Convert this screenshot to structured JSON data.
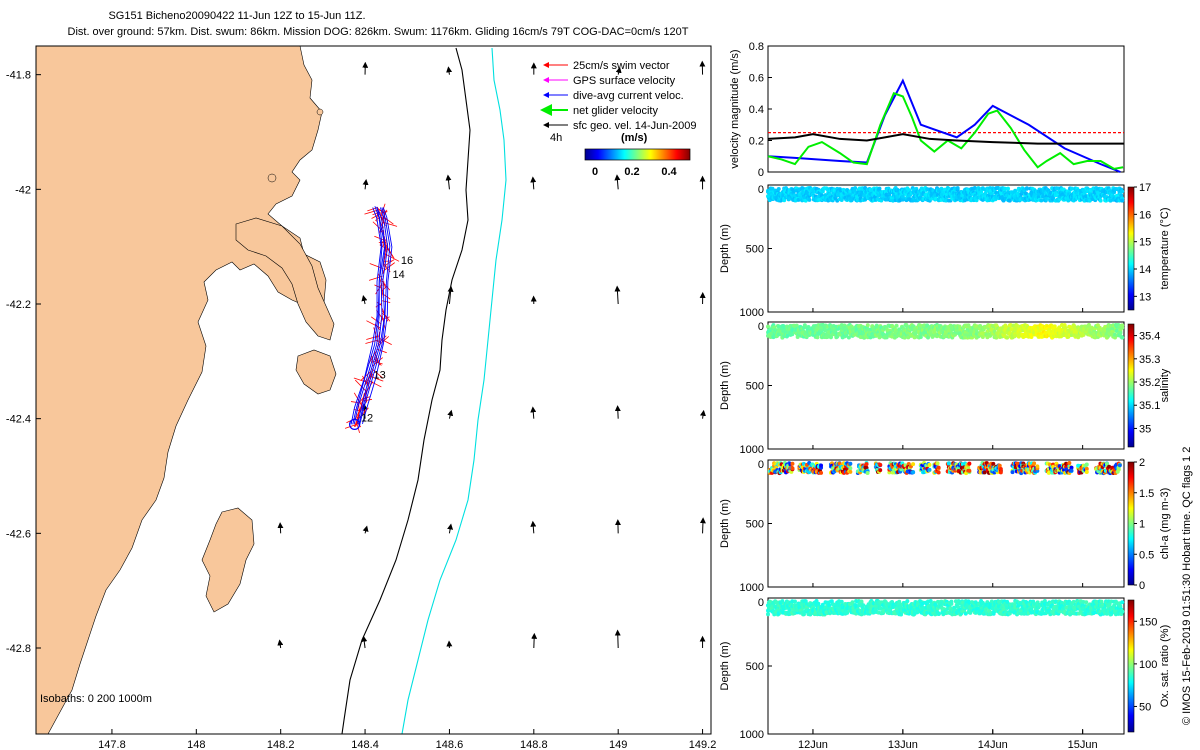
{
  "title": {
    "line1": "SG151 Bicheno20090422 11-Jun 12Z to 15-Jun 11Z.",
    "line2": "Dist. over ground: 57km. Dist. swum: 86km. Mission DOG: 826km. Swum: 1176km. Gliding 16cm/s 79T COG-DAC=0cm/s 120T"
  },
  "copyright": "© IMOS 15-Feb-2019 01:51:30 Hobart time. QC flags 1  2",
  "colors": {
    "land": "#f8c79b",
    "swim": "#ff0000",
    "gps": "#ff00ff",
    "dac": "#0000ff",
    "net": "#00ee00",
    "geo": "#000000",
    "isobath200": "#000000",
    "isobath1000": "#00e0e0",
    "threshold": "#ff0000"
  },
  "chart_data": [
    {
      "type": "map",
      "xlim": [
        147.62,
        149.22
      ],
      "ylim": [
        -42.95,
        -41.75
      ],
      "xticks": [
        "147.8",
        "148",
        "148.2",
        "148.4",
        "148.6",
        "148.8",
        "149",
        "149.2"
      ],
      "xtick_values": [
        147.8,
        148.0,
        148.2,
        148.4,
        148.6,
        148.8,
        149.0,
        149.2
      ],
      "yticks": [
        "-41.8",
        "-42",
        "-42.2",
        "-42.4",
        "-42.6",
        "-42.8"
      ],
      "ytick_values": [
        -41.8,
        -42.0,
        -42.2,
        -42.4,
        -42.6,
        -42.8
      ],
      "legend": {
        "position": "top-right",
        "items": [
          {
            "label": "25cm/s swim vector",
            "color": "#ff0000"
          },
          {
            "label": "GPS surface velocity",
            "color": "#ff00ff"
          },
          {
            "label": "dive-avg current veloc.",
            "color": "#0000ff"
          },
          {
            "label": "net glider velocity",
            "color": "#00ee00"
          },
          {
            "label": "sfc geo. vel. 14-Jun-2009",
            "color": "#000000"
          }
        ],
        "note": "4h",
        "colorbar_label": "(m/s)",
        "colorbar_ticks": [
          "0",
          "0.2",
          "0.4"
        ]
      },
      "isobaths_label": "Isobaths: 0  200  1000m",
      "track": [
        [
          148.38,
          -42.41
        ],
        [
          148.39,
          -42.38
        ],
        [
          148.41,
          -42.33
        ],
        [
          148.43,
          -42.27
        ],
        [
          148.44,
          -42.22
        ],
        [
          148.44,
          -42.16
        ],
        [
          148.45,
          -42.1
        ],
        [
          148.44,
          -42.05
        ],
        [
          148.43,
          -42.03
        ]
      ],
      "day_labels": [
        {
          "text": "12",
          "lon": 148.39,
          "lat": -42.405
        },
        {
          "text": "13",
          "lon": 148.42,
          "lat": -42.33
        },
        {
          "text": "14",
          "lon": 148.465,
          "lat": -42.155
        },
        {
          "text": "16",
          "lon": 148.485,
          "lat": -42.13
        }
      ],
      "geo_grid_lons": [
        148.2,
        148.4,
        148.6,
        148.8,
        149.0,
        149.2
      ],
      "geo_grid_lats": [
        -41.8,
        -42.0,
        -42.2,
        -42.4,
        -42.6,
        -42.8
      ]
    },
    {
      "type": "line",
      "ylabel": "velocity magnitude (m/s)",
      "ylim": [
        0,
        0.8
      ],
      "yticks": [
        "0",
        "0.2",
        "0.4",
        "0.6",
        "0.8"
      ],
      "ytick_values": [
        0,
        0.2,
        0.4,
        0.6,
        0.8
      ],
      "xlim": [
        11.5,
        15.46
      ],
      "threshold": 0.25,
      "series": [
        {
          "color": "#0000ff",
          "x": [
            11.5,
            11.8,
            12.3,
            12.6,
            12.8,
            13.0,
            13.2,
            13.6,
            13.8,
            14.0,
            14.4,
            14.8,
            15.2,
            15.42
          ],
          "y": [
            0.1,
            0.09,
            0.07,
            0.06,
            0.36,
            0.58,
            0.3,
            0.22,
            0.3,
            0.42,
            0.3,
            0.15,
            0.05,
            0.0
          ]
        },
        {
          "color": "#00ee00",
          "x": [
            11.5,
            11.65,
            11.8,
            11.95,
            12.1,
            12.3,
            12.45,
            12.6,
            12.75,
            12.9,
            13.0,
            13.1,
            13.2,
            13.35,
            13.5,
            13.65,
            13.8,
            13.95,
            14.05,
            14.2,
            14.35,
            14.5,
            14.6,
            14.75,
            14.9,
            15.05,
            15.2,
            15.35,
            15.45
          ],
          "y": [
            0.1,
            0.08,
            0.05,
            0.16,
            0.19,
            0.12,
            0.06,
            0.05,
            0.3,
            0.5,
            0.48,
            0.35,
            0.2,
            0.13,
            0.2,
            0.15,
            0.25,
            0.37,
            0.39,
            0.28,
            0.14,
            0.03,
            0.07,
            0.12,
            0.05,
            0.07,
            0.07,
            0.02,
            0.03
          ]
        },
        {
          "color": "#000000",
          "x": [
            11.5,
            11.8,
            12.0,
            12.3,
            12.6,
            12.8,
            13.0,
            13.3,
            13.6,
            14.0,
            14.5,
            15.0,
            15.46
          ],
          "y": [
            0.21,
            0.22,
            0.24,
            0.21,
            0.2,
            0.22,
            0.24,
            0.21,
            0.2,
            0.19,
            0.18,
            0.18,
            0.18
          ]
        }
      ]
    },
    {
      "type": "scatter",
      "ylabel": "Depth (m)",
      "ylim": [
        0,
        1000
      ],
      "yticks": [
        "0",
        "500",
        "1000"
      ],
      "ytick_values": [
        0,
        500,
        1000
      ],
      "clabel": "temperature (°C)",
      "cticks": [
        "13",
        "14",
        "15",
        "16",
        "17"
      ],
      "ctick_values": [
        13,
        14,
        15,
        16,
        17
      ],
      "crange": [
        12.5,
        17
      ],
      "value_along_x": [
        [
          11.5,
          14.0
        ],
        [
          15.46,
          14.0
        ]
      ],
      "depth_range": [
        0,
        100
      ]
    },
    {
      "type": "scatter",
      "ylabel": "Depth (m)",
      "ylim": [
        0,
        1000
      ],
      "yticks": [
        "0",
        "500",
        "1000"
      ],
      "ytick_values": [
        0,
        500,
        1000
      ],
      "clabel": "salinity",
      "cticks": [
        "35",
        "35.1",
        "35.2",
        "35.3",
        "35.4"
      ],
      "ctick_values": [
        35.0,
        35.1,
        35.2,
        35.3,
        35.4
      ],
      "crange": [
        34.92,
        35.45
      ],
      "value_along_x": [
        [
          11.5,
          35.17
        ],
        [
          13.8,
          35.19
        ],
        [
          14.6,
          35.25
        ],
        [
          15.0,
          35.21
        ],
        [
          15.46,
          35.18
        ]
      ],
      "depth_range": [
        0,
        100
      ]
    },
    {
      "type": "scatter",
      "ylabel": "Depth (m)",
      "ylim": [
        0,
        1000
      ],
      "yticks": [
        "0",
        "500",
        "1000"
      ],
      "ytick_values": [
        0,
        500,
        1000
      ],
      "clabel": "chl-a (mg m-3)",
      "cticks": [
        "0",
        "0.5",
        "1",
        "1.5",
        "2"
      ],
      "ctick_values": [
        0,
        0.5,
        1.0,
        1.5,
        2.0
      ],
      "crange": [
        0,
        2
      ],
      "bursts": [
        [
          11.52,
          11.78
        ],
        [
          11.85,
          12.1
        ],
        [
          12.2,
          12.42
        ],
        [
          12.5,
          12.62
        ],
        [
          12.7,
          12.76
        ],
        [
          12.85,
          13.12
        ],
        [
          13.2,
          13.3
        ],
        [
          13.35,
          13.4
        ],
        [
          13.5,
          13.75
        ],
        [
          13.85,
          14.1
        ],
        [
          14.22,
          14.5
        ],
        [
          14.6,
          14.88
        ],
        [
          14.95,
          15.05
        ],
        [
          15.15,
          15.42
        ]
      ],
      "depth_range": [
        0,
        80
      ]
    },
    {
      "type": "scatter",
      "ylabel": "Depth (m)",
      "ylim": [
        0,
        1000
      ],
      "yticks": [
        "0",
        "500",
        "1000"
      ],
      "ytick_values": [
        0,
        500,
        1000
      ],
      "clabel": "Ox. sat. ratio (%)",
      "cticks": [
        "50",
        "100",
        "150"
      ],
      "ctick_values": [
        50,
        100,
        150
      ],
      "crange": [
        20,
        175
      ],
      "value_along_x": [
        [
          11.5,
          85
        ],
        [
          15.46,
          85
        ]
      ],
      "depth_range": [
        0,
        100
      ]
    }
  ],
  "time_axis": {
    "labels": [
      "12Jun",
      "13Jun",
      "14Jun",
      "15Jun"
    ],
    "values": [
      12,
      13,
      14,
      15
    ],
    "xlim": [
      11.5,
      15.46
    ]
  }
}
